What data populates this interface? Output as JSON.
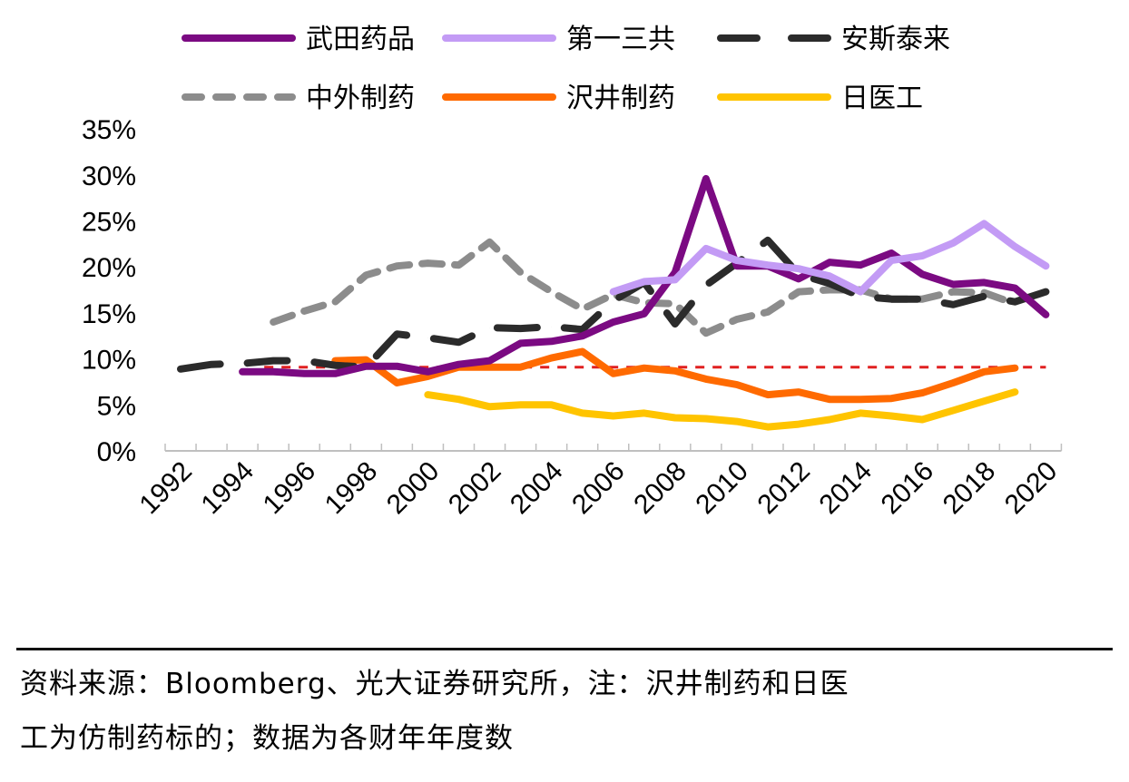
{
  "chart_data": {
    "type": "line",
    "title": "",
    "xlabel": "",
    "ylabel": "",
    "x": [
      1992,
      1993,
      1994,
      1995,
      1996,
      1997,
      1998,
      1999,
      2000,
      2001,
      2002,
      2003,
      2004,
      2005,
      2006,
      2007,
      2008,
      2009,
      2010,
      2011,
      2012,
      2013,
      2014,
      2015,
      2016,
      2017,
      2018,
      2019,
      2020
    ],
    "x_tick_labels": [
      "1992",
      "1994",
      "1996",
      "1998",
      "2000",
      "2002",
      "2004",
      "2006",
      "2008",
      "2010",
      "2012",
      "2014",
      "2016",
      "2018",
      "2020"
    ],
    "y_tick_labels": [
      "0%",
      "5%",
      "10%",
      "15%",
      "20%",
      "25%",
      "30%",
      "35%"
    ],
    "ylim": [
      0,
      35
    ],
    "grid": false,
    "legend_placement": "top",
    "series": [
      {
        "name": "武田药品",
        "color": "#7B0A82",
        "style": "solid",
        "values": [
          null,
          null,
          8.6,
          8.6,
          8.4,
          8.4,
          9.2,
          9.2,
          8.6,
          9.4,
          9.8,
          11.7,
          11.9,
          12.5,
          14.0,
          14.9,
          19.4,
          29.6,
          20.1,
          20.1,
          18.7,
          20.5,
          20.2,
          21.5,
          19.2,
          18.1,
          18.3,
          17.7,
          14.8
        ]
      },
      {
        "name": "第一三共",
        "color": "#C39BF5",
        "style": "solid",
        "values": [
          null,
          null,
          null,
          null,
          null,
          null,
          null,
          null,
          null,
          null,
          null,
          null,
          null,
          null,
          17.3,
          18.4,
          18.6,
          22.0,
          20.7,
          20.2,
          19.8,
          19.0,
          17.3,
          20.7,
          21.2,
          22.6,
          24.7,
          22.2,
          20.1
        ]
      },
      {
        "name": "安斯泰来",
        "color": "#2B2B2B",
        "style": "long-dash",
        "values": [
          8.9,
          9.4,
          9.5,
          9.8,
          9.8,
          9.3,
          9.1,
          12.7,
          12.3,
          11.8,
          13.4,
          13.3,
          13.5,
          13.2,
          16.3,
          18.3,
          13.8,
          18.0,
          20.4,
          22.9,
          19.2,
          18.2,
          16.8,
          16.5,
          16.5,
          15.9,
          16.8,
          16.2,
          17.3
        ]
      },
      {
        "name": "中外制药",
        "color": "#8C8C8C",
        "style": "dash",
        "values": [
          null,
          null,
          null,
          14.0,
          15.2,
          16.2,
          19.1,
          20.1,
          20.4,
          20.2,
          22.7,
          19.4,
          17.3,
          15.4,
          17.0,
          16.1,
          16.0,
          12.8,
          14.3,
          15.1,
          17.3,
          17.5,
          17.5,
          16.5,
          16.5,
          17.3,
          17.2,
          16.0,
          null
        ]
      },
      {
        "name": "沢井制药",
        "color": "#FF6A00",
        "style": "solid",
        "values": [
          null,
          null,
          null,
          null,
          null,
          9.8,
          9.9,
          7.4,
          8.1,
          9.1,
          9.1,
          9.1,
          10.1,
          10.8,
          8.4,
          9.0,
          8.7,
          7.8,
          7.2,
          6.1,
          6.4,
          5.6,
          5.6,
          5.7,
          6.3,
          7.4,
          8.6,
          9.0,
          null
        ]
      },
      {
        "name": "日医工",
        "color": "#FFC400",
        "style": "solid",
        "values": [
          null,
          null,
          null,
          null,
          null,
          null,
          null,
          null,
          6.1,
          5.6,
          4.8,
          5.0,
          5.0,
          4.1,
          3.8,
          4.1,
          3.6,
          3.5,
          3.2,
          2.6,
          2.9,
          3.4,
          4.1,
          3.8,
          3.4,
          4.4,
          5.4,
          6.4,
          null
        ]
      }
    ],
    "reference_line": {
      "value": 9.1,
      "color": "#E02020",
      "style": "dotted",
      "from": 1995,
      "to": 2020
    }
  },
  "footer": {
    "line1": "资料来源：Bloomberg、光大证券研究所，注：沢井制药和日医",
    "line2": "工为仿制药标的；数据为各财年年度数"
  }
}
